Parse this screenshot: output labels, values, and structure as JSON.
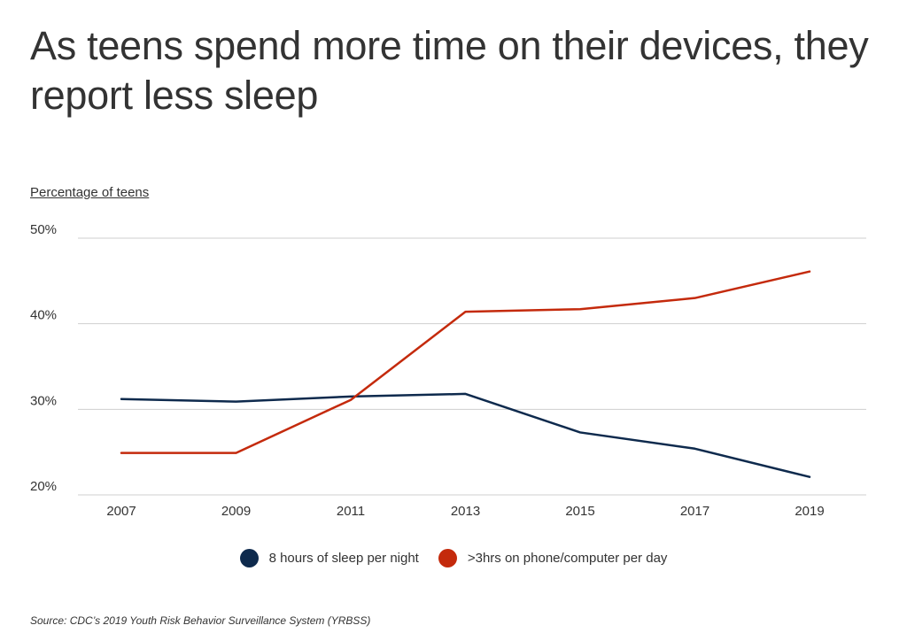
{
  "chart_data": {
    "type": "line",
    "title": "As teens spend more time on their devices, they report less sleep",
    "ylabel": "Percentage of teens",
    "xlabel": "",
    "x": [
      "2007",
      "2009",
      "2011",
      "2013",
      "2015",
      "2017",
      "2019"
    ],
    "ylim": [
      20,
      50
    ],
    "yticks": [
      "20%",
      "30%",
      "40%",
      "50%"
    ],
    "grid": true,
    "legend_position": "bottom",
    "series": [
      {
        "name": "8 hours of sleep per night",
        "color": "#0e2a4d",
        "values": [
          31.2,
          30.9,
          31.5,
          31.8,
          27.3,
          25.4,
          22.1
        ]
      },
      {
        "name": ">3hrs on phone/computer per day",
        "color": "#c42a0c",
        "values": [
          24.9,
          24.9,
          31.1,
          41.4,
          41.7,
          43.0,
          46.1
        ]
      }
    ],
    "source": "Source:  CDC’s 2019 Youth Risk Behavior Surveillance System (YRBSS)"
  }
}
